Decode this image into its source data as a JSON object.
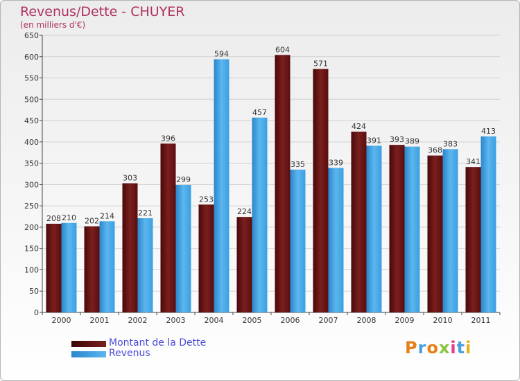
{
  "title": "Revenus/Dette - CHUYER",
  "subtitle": "(en milliers d'€)",
  "logo_text": "Proxiti",
  "colors": {
    "title": "#b03060",
    "dette": "#7a1f1f",
    "revenus": "#3a9fe2",
    "legend_text": "#4a4ad8",
    "grid": "#d0d0d0"
  },
  "legend": [
    {
      "label": "Montant de la Dette",
      "color": "#5a0a0a"
    },
    {
      "label": "Revenus",
      "color": "#3a9fe2"
    }
  ],
  "chart_data": {
    "type": "bar",
    "title": "Revenus/Dette - CHUYER",
    "subtitle": "(en milliers d'€)",
    "categories": [
      "2000",
      "2001",
      "2002",
      "2003",
      "2004",
      "2005",
      "2006",
      "2007",
      "2008",
      "2009",
      "2010",
      "2011"
    ],
    "series": [
      {
        "name": "Montant de la Dette",
        "values": [
          208,
          202,
          303,
          396,
          253,
          224,
          604,
          571,
          424,
          393,
          368,
          341
        ]
      },
      {
        "name": "Revenus",
        "values": [
          210,
          214,
          221,
          299,
          594,
          457,
          335,
          339,
          391,
          389,
          383,
          413
        ]
      }
    ],
    "ylim": [
      0,
      650
    ],
    "yticks": [
      0,
      50,
      100,
      150,
      200,
      250,
      300,
      350,
      400,
      450,
      500,
      550,
      600,
      650
    ],
    "grid": true,
    "legend_position": "bottom-left"
  }
}
